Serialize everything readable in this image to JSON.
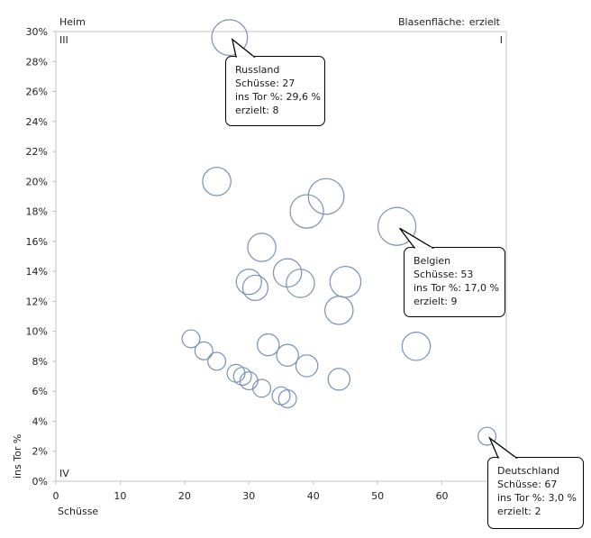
{
  "chart_data": {
    "type": "scatter",
    "subtype": "bubble",
    "panel_label": "Heim",
    "size_legend_label": "Blasenfläche:",
    "size_legend_value": "erzielt",
    "xlabel": "Schüsse",
    "ylabel": "ins Tor %",
    "xlim": [
      0,
      70
    ],
    "ylim": [
      0,
      30
    ],
    "x_ticks": [
      "0",
      "10",
      "20",
      "30",
      "40",
      "50",
      "60"
    ],
    "x_tick_values": [
      0,
      10,
      20,
      30,
      40,
      50,
      60
    ],
    "y_ticks": [
      "0%",
      "2%",
      "4%",
      "6%",
      "8%",
      "10%",
      "12%",
      "14%",
      "16%",
      "18%",
      "20%",
      "22%",
      "24%",
      "26%",
      "28%",
      "30%"
    ],
    "y_tick_values": [
      0,
      2,
      4,
      6,
      8,
      10,
      12,
      14,
      16,
      18,
      20,
      22,
      24,
      26,
      28,
      30
    ],
    "quadrant_labels": {
      "top_left": "III",
      "top_right": "I",
      "bottom_left": "IV"
    },
    "grid": false,
    "bubble_color": "#7890b8",
    "points": [
      {
        "label": "Russland",
        "x": 27,
        "y": 29.6,
        "size": 8
      },
      {
        "label": "",
        "x": 25,
        "y": 20.0,
        "size": 5
      },
      {
        "label": "",
        "x": 42,
        "y": 19.0,
        "size": 8
      },
      {
        "label": "",
        "x": 39,
        "y": 18.0,
        "size": 7
      },
      {
        "label": "Belgien",
        "x": 53,
        "y": 17.0,
        "size": 9
      },
      {
        "label": "",
        "x": 32,
        "y": 15.6,
        "size": 5
      },
      {
        "label": "",
        "x": 36,
        "y": 13.9,
        "size": 5
      },
      {
        "label": "",
        "x": 30,
        "y": 13.3,
        "size": 4
      },
      {
        "label": "",
        "x": 31,
        "y": 12.9,
        "size": 4
      },
      {
        "label": "",
        "x": 38,
        "y": 13.2,
        "size": 5
      },
      {
        "label": "",
        "x": 45,
        "y": 13.3,
        "size": 6
      },
      {
        "label": "",
        "x": 44,
        "y": 11.4,
        "size": 5
      },
      {
        "label": "",
        "x": 56,
        "y": 9.0,
        "size": 5
      },
      {
        "label": "",
        "x": 21,
        "y": 9.5,
        "size": 2
      },
      {
        "label": "",
        "x": 23,
        "y": 8.7,
        "size": 2
      },
      {
        "label": "",
        "x": 25,
        "y": 8.0,
        "size": 2
      },
      {
        "label": "",
        "x": 33,
        "y": 9.1,
        "size": 3
      },
      {
        "label": "",
        "x": 36,
        "y": 8.4,
        "size": 3
      },
      {
        "label": "",
        "x": 39,
        "y": 7.7,
        "size": 3
      },
      {
        "label": "",
        "x": 28,
        "y": 7.2,
        "size": 2
      },
      {
        "label": "",
        "x": 29,
        "y": 7.0,
        "size": 2
      },
      {
        "label": "",
        "x": 30,
        "y": 6.7,
        "size": 2
      },
      {
        "label": "",
        "x": 32,
        "y": 6.2,
        "size": 2
      },
      {
        "label": "",
        "x": 35,
        "y": 5.7,
        "size": 2
      },
      {
        "label": "",
        "x": 36,
        "y": 5.5,
        "size": 2
      },
      {
        "label": "",
        "x": 44,
        "y": 6.8,
        "size": 3
      },
      {
        "label": "Deutschland",
        "x": 67,
        "y": 3.0,
        "size": 2
      }
    ],
    "annotations": [
      {
        "country": "Russland",
        "lines": [
          "Russland",
          "Schüsse: 27",
          "ins Tor %: 29,6 %",
          "erzielt: 8"
        ]
      },
      {
        "country": "Belgien",
        "lines": [
          "Belgien",
          "Schüsse: 53",
          "ins Tor %: 17,0 %",
          "erzielt: 9"
        ]
      },
      {
        "country": "Deutschland",
        "lines": [
          "Deutschland",
          "Schüsse: 67",
          "ins Tor %: 3,0 %",
          "erzielt: 2"
        ]
      }
    ]
  }
}
